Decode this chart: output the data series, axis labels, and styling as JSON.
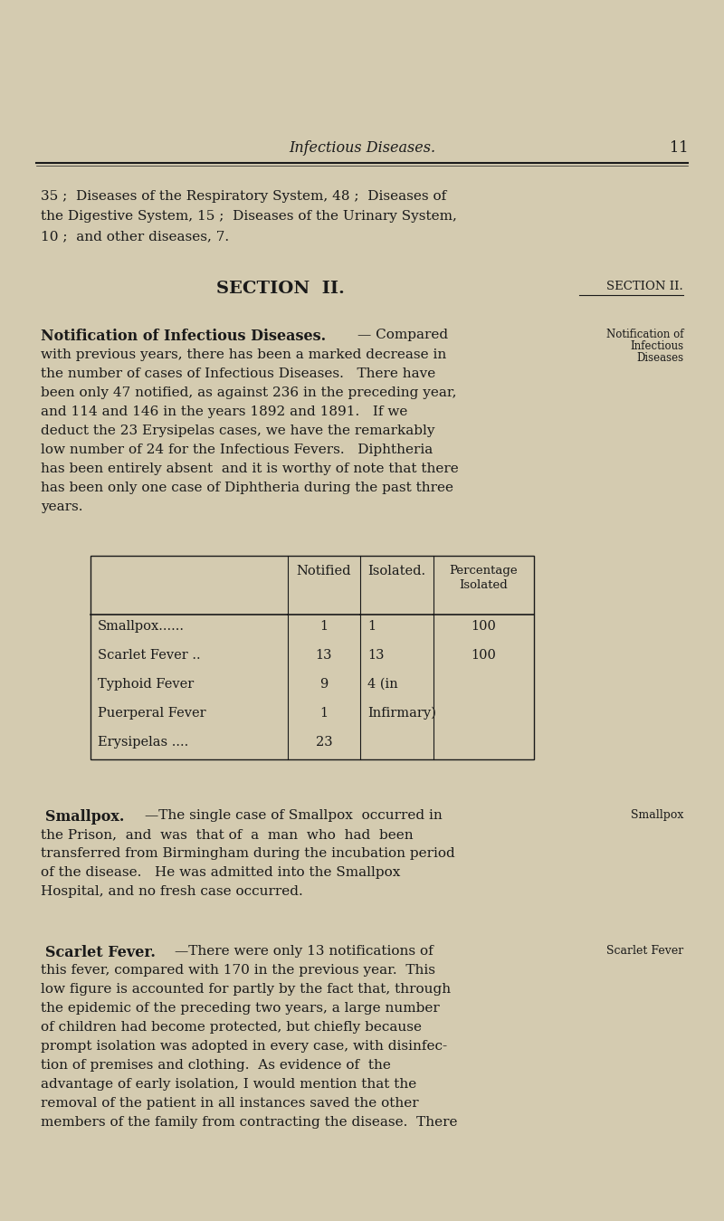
{
  "bg_color": "#d4cbb0",
  "text_color": "#1a1a1a",
  "page_width": 8.0,
  "page_height": 13.49,
  "header_title": "Infectious Diseases.",
  "header_page": "11",
  "intro_text_line1": "35 ;  Diseases of the Respiratory System, 48 ;  Diseases of",
  "intro_text_line2": "the Digestive System, 15 ;  Diseases of the Urinary System,",
  "intro_text_line3": "10 ;  and other diseases, 7.",
  "section_center": "SECTION  II.",
  "section_right": "SECTION II.",
  "notif_bold": "Notification of Infectious Diseases.",
  "notif_dash": "— Compared",
  "notif_right1": "Notification of",
  "notif_right2": "Infectious",
  "notif_right3": "Diseases",
  "para1_lines": [
    "with previous years, there has been a marked decrease in",
    "the number of cases of Infectious Diseases.   There have",
    "been only 47 notified, as against 236 in the preceding year,",
    "and 114 and 146 in the years 1892 and 1891.   If we",
    "deduct the 23 Erysipelas cases, we have the remarkably",
    "low number of 24 for the Infectious Fevers.   Diphtheria",
    "has been entirely absent  and it is worthy of note that there",
    "has been only one case of Diphtheria during the past three",
    "years."
  ],
  "table_rows": [
    [
      "Smallpox......",
      "1",
      "1",
      "100"
    ],
    [
      "Scarlet Fever ..",
      "13",
      "13",
      "100"
    ],
    [
      "Typhoid Fever",
      "9",
      "4 (in",
      ""
    ],
    [
      "Puerperal Fever",
      "1",
      "Infirmary)",
      ""
    ],
    [
      "Erysipelas ....",
      "23",
      "",
      ""
    ]
  ],
  "smallpox_bold": "Smallpox.",
  "smallpox_right": "Smallpox",
  "smallpox_para": [
    "—The single case of Smallpox  occurred in",
    "the Prison,  and  was  that of  a  man  who  had  been",
    "transferred from Birmingham during the incubation period",
    "of the disease.   He was admitted into the Smallpox",
    "Hospital, and no fresh case occurred."
  ],
  "scarlet_bold": "Scarlet Fever.",
  "scarlet_right": "Scarlet Fever",
  "scarlet_para": [
    "—There were only 13 notifications of",
    "this fever, compared with 170 in the previous year.  This",
    "low figure is accounted for partly by the fact that, through",
    "the epidemic of the preceding two years, a large number",
    "of children had become protected, but chiefly because",
    "prompt isolation was adopted in every case, with disinfec-",
    "tion of premises and clothing.  As evidence of  the",
    "advantage of early isolation, I would mention that the",
    "removal of the patient in all instances saved the other",
    "members of the family from contracting the disease.  There"
  ]
}
